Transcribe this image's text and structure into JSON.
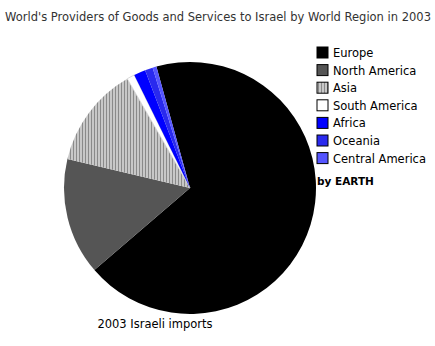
{
  "chart_data": {
    "type": "pie",
    "title": "World's Providers of Goods and Services to Israel by World Region in 2003",
    "categories": [
      "Europe",
      "North America",
      "Asia",
      "South America",
      "Africa",
      "Oceania",
      "Central America"
    ],
    "values": [
      68,
      15,
      13,
      1,
      1.5,
      1,
      0.5
    ],
    "colors": [
      "#000000",
      "#555555",
      "#aaaaaa",
      "#ffffff",
      "#0000ff",
      "#2a2aee",
      "#5555ff"
    ],
    "annotations": [
      "2003 Israeli imports",
      "by EARTH"
    ],
    "legend": "right"
  }
}
